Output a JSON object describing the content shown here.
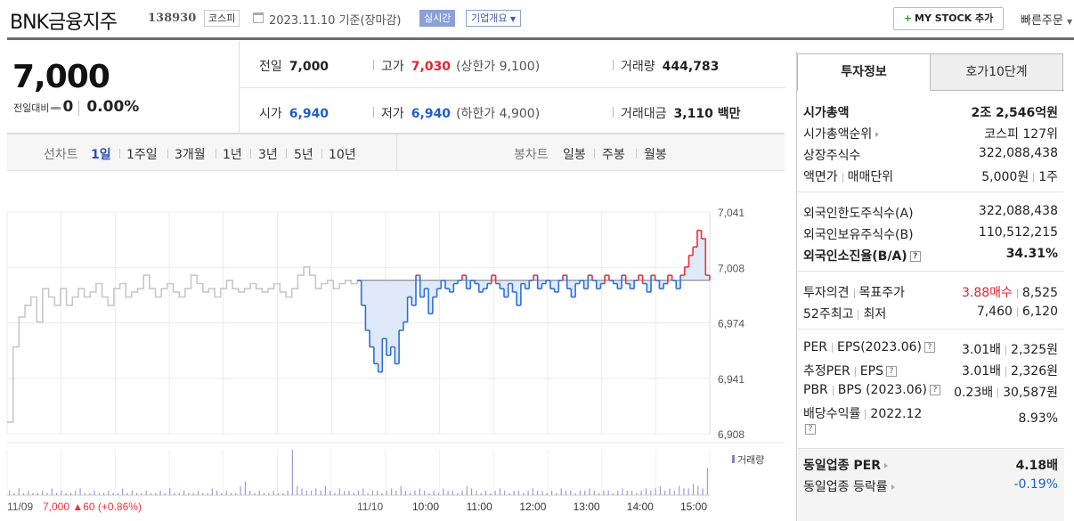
{
  "header": {
    "name": "BNK금융지주",
    "code": "138930",
    "market": "코스피",
    "date_text": "2023.11.10  기준(장마감)",
    "realtime_label": "실시간",
    "overview_label": "기업개요",
    "mystock_label": "MY STOCK 추가",
    "quick_order_label": "빠른주문"
  },
  "summary": {
    "price": "7,000",
    "change_label": "전일대비",
    "change_value": "0",
    "change_rate": "0.00%",
    "prev_close": {
      "label": "전일",
      "value": "7,000"
    },
    "high": {
      "label": "고가",
      "value": "7,030",
      "sub": "(상한가 9,100)"
    },
    "volume": {
      "label": "거래량",
      "value": "444,783"
    },
    "open": {
      "label": "시가",
      "value": "6,940"
    },
    "low": {
      "label": "저가",
      "value": "6,940",
      "sub": "(하한가 4,900)"
    },
    "amount": {
      "label": "거래대금",
      "value": "3,110 백만"
    }
  },
  "periods": {
    "line_title": "선차트",
    "line_items": [
      "1일",
      "1주일",
      "3개월",
      "1년",
      "3년",
      "5년",
      "10년"
    ],
    "selected": "1일",
    "candle_title": "봉차트",
    "candle_items": [
      "일봉",
      "주봉",
      "월봉"
    ]
  },
  "chart_data": {
    "type": "line",
    "yticks": [
      "7,041",
      "7,008",
      "6,974",
      "6,941",
      "6,908"
    ],
    "ylim": [
      6908,
      7041
    ],
    "base_value": 7000,
    "volume_label": "거래량",
    "prev_day_label": "11/09",
    "prev_day_info": "7,000 ▲60 (+0.86%)",
    "today_label": "11/10",
    "xticks": [
      "10:00",
      "11:00",
      "12:00",
      "13:00",
      "14:00",
      "15:00"
    ],
    "colors": {
      "up": "#f0313a",
      "down": "#2e6fd6",
      "prev": "#c8c8c8",
      "fill": "#dbe7f8"
    },
    "prev_series": [
      6915,
      6960,
      6978,
      6985,
      6990,
      6975,
      6995,
      6990,
      6985,
      6995,
      6985,
      6990,
      6995,
      6990,
      6993,
      6998,
      6990,
      6985,
      6995,
      6998,
      6990,
      6993,
      6995,
      7003,
      6995,
      6990,
      6995,
      6998,
      6993,
      6990,
      6995,
      7003,
      6998,
      6993,
      6995,
      6990,
      6995,
      7000,
      6995,
      6993,
      6995,
      6998,
      6995,
      6993,
      6995,
      6998,
      6993,
      6990,
      6995,
      7003,
      7008,
      7003,
      6995,
      6998,
      7000,
      6995,
      6998,
      7000,
      6998,
      7000
    ],
    "today_series": [
      7000,
      6985,
      6970,
      6960,
      6950,
      6945,
      6965,
      6955,
      6960,
      6950,
      6970,
      6975,
      6990,
      6985,
      7003,
      6990,
      6995,
      6980,
      6990,
      6995,
      7000,
      6995,
      6993,
      6998,
      7000,
      7003,
      6995,
      7000,
      6998,
      6993,
      6995,
      6998,
      7003,
      6998,
      6995,
      6990,
      6998,
      6993,
      6985,
      6998,
      6995,
      7000,
      7003,
      6995,
      6998,
      7000,
      6995,
      6993,
      7000,
      7003,
      6995,
      6990,
      6998,
      7000,
      6995,
      7003,
      7000,
      6995,
      6998,
      7003,
      7000,
      6998,
      6995,
      7003,
      6998,
      6995,
      7000,
      7003,
      6998,
      6993,
      7003,
      7000,
      6995,
      6998,
      7003,
      7000,
      6995,
      7003,
      7008,
      7015,
      7020,
      7030,
      7025,
      7003,
      7000
    ],
    "volume_series": [
      2,
      1,
      3,
      1,
      2,
      1,
      1,
      2,
      1,
      3,
      1,
      2,
      1,
      1,
      2,
      3,
      1,
      1,
      2,
      1,
      1,
      2,
      1,
      1,
      3,
      1,
      2,
      1,
      1,
      2,
      1,
      1,
      2,
      1,
      3,
      1,
      1,
      2,
      1,
      1,
      2,
      1,
      1,
      3,
      2,
      1,
      2,
      1,
      1,
      4,
      6,
      2,
      1,
      2,
      1,
      1,
      2,
      1,
      1,
      2,
      20,
      4,
      3,
      2,
      2,
      3,
      2,
      4,
      2,
      1,
      3,
      2,
      2,
      1,
      2,
      3,
      1,
      2,
      2,
      1,
      2,
      3,
      2,
      4,
      2,
      1,
      2,
      3,
      2,
      1,
      2,
      1,
      3,
      2,
      2,
      1,
      2,
      4,
      3,
      2,
      1,
      2,
      1,
      2,
      3,
      2,
      1,
      2,
      2,
      1,
      2,
      3,
      2,
      2,
      1,
      2,
      1,
      3,
      2,
      2,
      1,
      2,
      2,
      3,
      2,
      1,
      2,
      2,
      1,
      2,
      3,
      2,
      2,
      1,
      2,
      3,
      2,
      3,
      4,
      2,
      3,
      2,
      4,
      3,
      3,
      5,
      4,
      3,
      12
    ]
  },
  "invest": {
    "tab_active": "투자정보",
    "tab_other": "호가10단계",
    "market_cap": {
      "label": "시가총액",
      "value": "2조 2,546억원"
    },
    "cap_rank": {
      "label": "시가총액순위",
      "value": "코스피 127위"
    },
    "shares": {
      "label": "상장주식수",
      "value": "322,088,438"
    },
    "par": {
      "label_a": "액면가",
      "label_b": "매매단위",
      "value_a": "5,000원",
      "value_b": "1주"
    },
    "foreign_limit": {
      "label": "외국인한도주식수(A)",
      "value": "322,088,438"
    },
    "foreign_hold": {
      "label": "외국인보유주식수(B)",
      "value": "110,512,215"
    },
    "foreign_rate": {
      "label": "외국인소진율(B/A)",
      "value": "34.31%"
    },
    "opinion": {
      "label_a": "투자의견",
      "label_b": "목표주가",
      "value_a": "3.88매수",
      "value_b": "8,525"
    },
    "week52": {
      "label_a": "52주최고",
      "label_b": "최저",
      "value_a": "7,460",
      "value_b": "6,120"
    },
    "per_eps": {
      "label_a": "PER",
      "label_b": "EPS(2023.06)",
      "value_a": "3.01배",
      "value_b": "2,325원"
    },
    "est_per": {
      "label_a": "추정PER",
      "label_b": "EPS",
      "value_a": "3.01배",
      "value_b": "2,326원"
    },
    "pbr_bps": {
      "label_a": "PBR",
      "label_b": "BPS (2023.06)",
      "value_a": "0.23배",
      "value_b": "30,587원"
    },
    "dividend": {
      "label_a": "배당수익률",
      "label_b": "2022.12",
      "value": "8.93%"
    },
    "sector_per": {
      "label": "동일업종 PER",
      "value": "4.18배"
    },
    "sector_rate": {
      "label": "동일업종 등락률",
      "value": "-0.19%"
    }
  }
}
